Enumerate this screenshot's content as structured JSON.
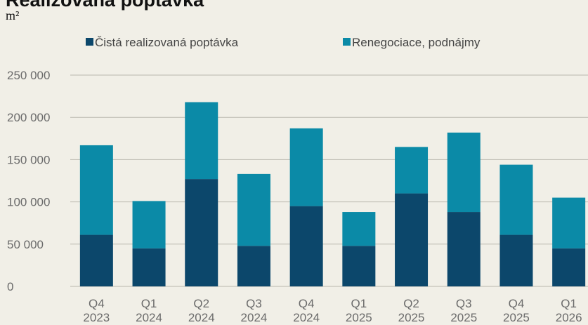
{
  "chart_data": {
    "type": "stacked_bar",
    "title": "Realizovaná poptávka",
    "subtitle": "m²",
    "categories": [
      [
        "Q4",
        "2023"
      ],
      [
        "Q1",
        "2024"
      ],
      [
        "Q2",
        "2024"
      ],
      [
        "Q3",
        "2024"
      ],
      [
        "Q4",
        "2024"
      ],
      [
        "Q1",
        "2025"
      ],
      [
        "Q2",
        "2025"
      ],
      [
        "Q3",
        "2025"
      ],
      [
        "Q4",
        "2025"
      ],
      [
        "Q1",
        "2026"
      ]
    ],
    "series": [
      {
        "name": "Čistá realizovaná poptávka",
        "color": "#0c476b",
        "values": [
          61000,
          45000,
          127000,
          48000,
          95000,
          48000,
          110000,
          88000,
          61000,
          45000
        ]
      },
      {
        "name": "Renegociace, podnájmy",
        "color": "#0b8aa7",
        "values": [
          106000,
          56000,
          91000,
          85000,
          92000,
          40000,
          55000,
          94000,
          83000,
          60000
        ]
      }
    ],
    "ylim": [
      0,
      250000
    ],
    "yticks": [
      {
        "value": 0,
        "label": "0"
      },
      {
        "value": 50000,
        "label": "50 000"
      },
      {
        "value": 100000,
        "label": "100 000"
      },
      {
        "value": 150000,
        "label": "150 000"
      },
      {
        "value": 200000,
        "label": "200 000"
      },
      {
        "value": 250000,
        "label": "250 000"
      }
    ],
    "grid": true
  }
}
